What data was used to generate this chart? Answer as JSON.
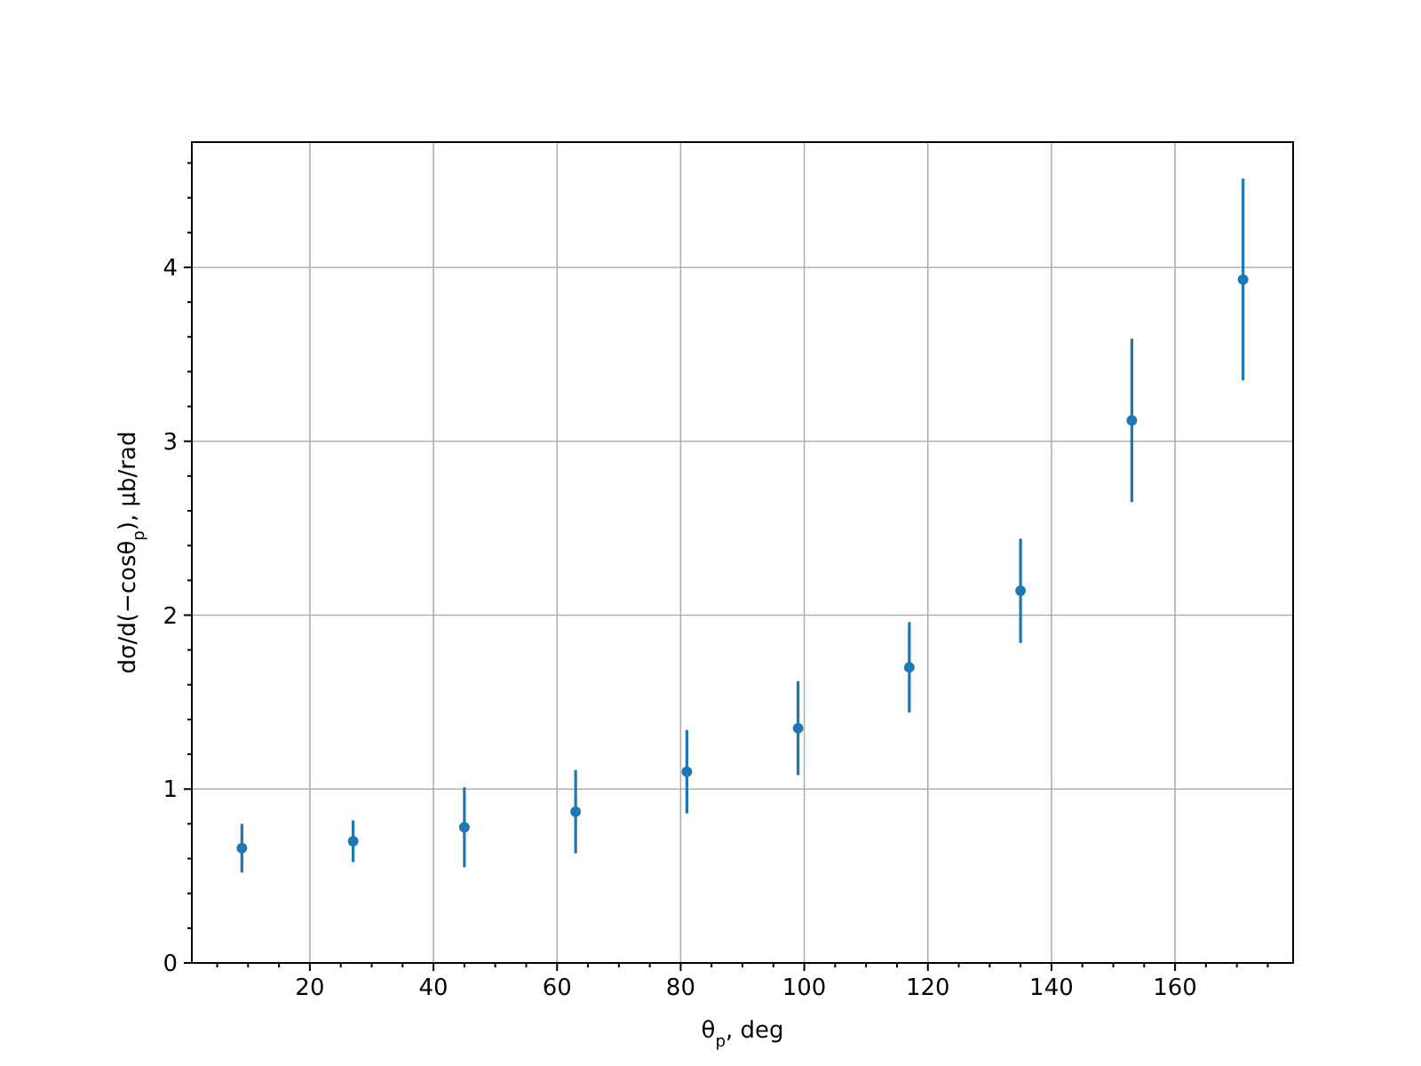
{
  "chart_data": {
    "type": "scatter",
    "xlabel": "θ$_{p}$, deg",
    "ylabel": "dσ/d(−cosθ$_{p}$), μb/rad",
    "x": [
      9,
      27,
      45,
      63,
      81,
      99,
      117,
      135,
      153,
      171
    ],
    "series": [
      {
        "color": "#1f77b4",
        "values": [
          0.66,
          0.7,
          0.78,
          0.87,
          1.1,
          1.35,
          1.7,
          2.14,
          3.12,
          3.93
        ],
        "errors": [
          0.14,
          0.12,
          0.23,
          0.24,
          0.24,
          0.27,
          0.26,
          0.3,
          0.47,
          0.58
        ]
      }
    ],
    "xlim": [
      0.9,
      179.1
    ],
    "ylim": [
      0,
      4.72
    ],
    "xticks": [
      {
        "value": 5,
        "label": null
      },
      {
        "value": 10,
        "label": null
      },
      {
        "value": 15,
        "label": null
      },
      20,
      {
        "value": 25,
        "label": null
      },
      {
        "value": 30,
        "label": null
      },
      {
        "value": 35,
        "label": null
      },
      40,
      {
        "value": 45,
        "label": null
      },
      {
        "value": 50,
        "label": null
      },
      {
        "value": 55,
        "label": null
      },
      60,
      {
        "value": 65,
        "label": null
      },
      {
        "value": 70,
        "label": null
      },
      {
        "value": 75,
        "label": null
      },
      80,
      {
        "value": 85,
        "label": null
      },
      {
        "value": 90,
        "label": null
      },
      {
        "value": 95,
        "label": null
      },
      100,
      {
        "value": 105,
        "label": null
      },
      {
        "value": 110,
        "label": null
      },
      {
        "value": 115,
        "label": null
      },
      120,
      {
        "value": 125,
        "label": null
      },
      {
        "value": 130,
        "label": null
      },
      {
        "value": 135,
        "label": null
      },
      140,
      {
        "value": 145,
        "label": null
      },
      {
        "value": 150,
        "label": null
      },
      {
        "value": 155,
        "label": null
      },
      160,
      {
        "value": 165,
        "label": null
      },
      {
        "value": 170,
        "label": null
      },
      {
        "value": 175,
        "label": null
      }
    ],
    "yticks": [
      0,
      {
        "value": 0.2,
        "label": null
      },
      {
        "value": 0.4,
        "label": null
      },
      {
        "value": 0.6,
        "label": null
      },
      {
        "value": 0.8,
        "label": null
      },
      1,
      {
        "value": 1.2,
        "label": null
      },
      {
        "value": 1.4,
        "label": null
      },
      {
        "value": 1.6,
        "label": null
      },
      {
        "value": 1.8,
        "label": null
      },
      2,
      {
        "value": 2.2,
        "label": null
      },
      {
        "value": 2.4,
        "label": null
      },
      {
        "value": 2.6,
        "label": null
      },
      {
        "value": 2.8,
        "label": null
      },
      3,
      {
        "value": 3.2,
        "label": null
      },
      {
        "value": 3.4,
        "label": null
      },
      {
        "value": 3.6,
        "label": null
      },
      {
        "value": 3.8,
        "label": null
      },
      4,
      {
        "value": 4.2,
        "label": null
      },
      {
        "value": 4.4,
        "label": null
      },
      {
        "value": 4.6,
        "label": null
      }
    ],
    "grid": true,
    "marker": "circle"
  }
}
